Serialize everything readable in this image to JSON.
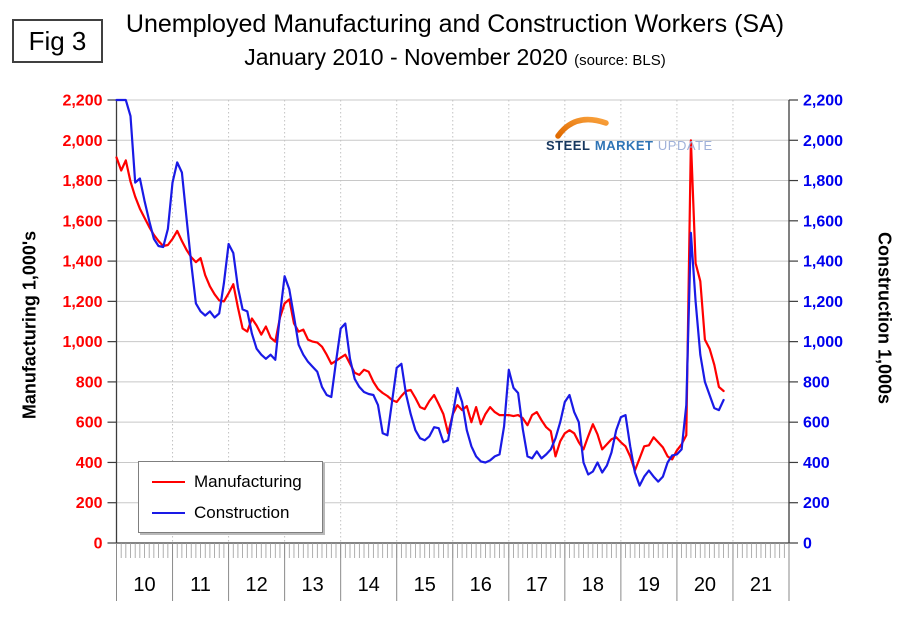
{
  "figure": {
    "label": "Fig 3"
  },
  "title": {
    "line1": "Unemployed Manufacturing and Construction Workers (SA)",
    "line2": "January 2010 - November 2020",
    "source": "(source: BLS)"
  },
  "logo": {
    "word1": "STEEL",
    "word2": "MARKET",
    "word3": "UPDATE",
    "swoosh_color": "#f07f13"
  },
  "axes": {
    "left": {
      "title": "Manufacturing  1,000's",
      "color": "#ff0000"
    },
    "right": {
      "title": "Construction 1,000s",
      "color": "#0000ee"
    }
  },
  "legend": {
    "items": [
      {
        "label": "Manufacturing",
        "color": "#ff0000"
      },
      {
        "label": "Construction",
        "color": "#1a1ae6"
      }
    ]
  },
  "chart_data": {
    "type": "line",
    "title": "Unemployed Manufacturing and Construction Workers (SA), January 2010 - November 2020, source BLS",
    "x_start_month": "2010-01",
    "x_end_month": "2020-11",
    "x_axis_years_shown": [
      "10",
      "11",
      "12",
      "13",
      "14",
      "15",
      "16",
      "17",
      "18",
      "19",
      "20",
      "21"
    ],
    "ylim": [
      0,
      2200
    ],
    "y_ticks": [
      0,
      200,
      400,
      600,
      800,
      1000,
      1200,
      1400,
      1600,
      1800,
      2000,
      2200
    ],
    "y_tick_labels": [
      "0",
      "200",
      "400",
      "600",
      "800",
      "1,000",
      "1,200",
      "1,400",
      "1,600",
      "1,800",
      "2,000",
      "2,200"
    ],
    "ylabel_left": "Manufacturing  1,000's",
    "ylabel_right": "Construction 1,000s",
    "grid": {
      "horizontal": "solid light gray every 200",
      "vertical": "dotted light gray at each year"
    },
    "legend_position": "inside lower-left",
    "units": "thousands of unemployed workers, monthly",
    "note": "Construction values for Feb-Mar 2010 exceed the axis maximum and are clipped at 2,200 in the figure",
    "series": [
      {
        "name": "Manufacturing",
        "axis": "left",
        "color": "#ff0000",
        "values": [
          1915,
          1850,
          1900,
          1795,
          1720,
          1660,
          1615,
          1570,
          1530,
          1500,
          1475,
          1480,
          1510,
          1550,
          1500,
          1455,
          1420,
          1395,
          1415,
          1330,
          1275,
          1235,
          1205,
          1200,
          1240,
          1285,
          1170,
          1065,
          1050,
          1115,
          1080,
          1035,
          1075,
          1020,
          1000,
          1120,
          1190,
          1210,
          1090,
          1050,
          1060,
          1010,
          1000,
          995,
          975,
          935,
          890,
          905,
          920,
          935,
          890,
          845,
          835,
          860,
          850,
          800,
          765,
          745,
          730,
          710,
          700,
          730,
          755,
          760,
          720,
          675,
          665,
          705,
          735,
          690,
          640,
          545,
          640,
          685,
          660,
          680,
          600,
          675,
          590,
          640,
          675,
          650,
          635,
          635,
          635,
          630,
          635,
          620,
          585,
          635,
          650,
          610,
          575,
          555,
          430,
          505,
          545,
          560,
          545,
          500,
          465,
          530,
          590,
          540,
          465,
          490,
          515,
          525,
          500,
          480,
          430,
          360,
          420,
          480,
          485,
          525,
          500,
          475,
          430,
          415,
          460,
          490,
          535,
          2000,
          1390,
          1300,
          1010,
          965,
          885,
          775,
          755
        ]
      },
      {
        "name": "Construction",
        "axis": "right",
        "color": "#1a1ae6",
        "values": [
          2200,
          2280,
          2260,
          2120,
          1790,
          1810,
          1700,
          1600,
          1510,
          1475,
          1470,
          1560,
          1790,
          1890,
          1840,
          1610,
          1390,
          1190,
          1150,
          1130,
          1150,
          1120,
          1140,
          1290,
          1485,
          1440,
          1270,
          1160,
          1150,
          1040,
          965,
          935,
          915,
          935,
          910,
          1135,
          1325,
          1260,
          1125,
          985,
          935,
          900,
          875,
          850,
          775,
          735,
          725,
          900,
          1065,
          1090,
          915,
          815,
          775,
          750,
          740,
          735,
          685,
          545,
          535,
          700,
          870,
          890,
          740,
          640,
          560,
          520,
          510,
          530,
          575,
          570,
          500,
          510,
          640,
          770,
          700,
          560,
          480,
          430,
          405,
          400,
          410,
          430,
          440,
          580,
          860,
          770,
          745,
          565,
          430,
          420,
          455,
          420,
          440,
          465,
          520,
          600,
          700,
          735,
          650,
          600,
          400,
          340,
          355,
          400,
          350,
          385,
          450,
          560,
          625,
          635,
          480,
          350,
          285,
          330,
          360,
          330,
          305,
          330,
          400,
          435,
          440,
          465,
          685,
          1540,
          1200,
          935,
          800,
          735,
          670,
          660,
          710
        ]
      }
    ]
  }
}
